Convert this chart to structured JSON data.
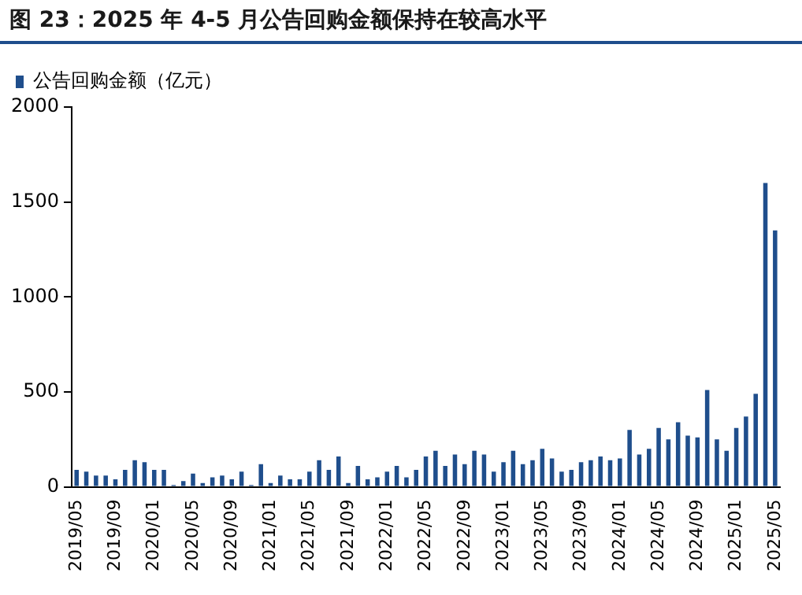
{
  "chart_data": {
    "type": "bar",
    "title": "图 23：2025 年 4-5 月公告回购金额保持在较高水平",
    "categories": [
      "2019/05",
      null,
      null,
      null,
      "2019/09",
      null,
      null,
      null,
      "2020/01",
      null,
      null,
      null,
      "2020/05",
      null,
      null,
      null,
      "2020/09",
      null,
      null,
      null,
      "2021/01",
      null,
      null,
      null,
      "2021/05",
      null,
      null,
      null,
      "2021/09",
      null,
      null,
      null,
      "2022/01",
      null,
      null,
      null,
      "2022/05",
      null,
      null,
      null,
      "2022/09",
      null,
      null,
      null,
      "2023/01",
      null,
      null,
      null,
      "2023/05",
      null,
      null,
      null,
      "2023/09",
      null,
      null,
      null,
      "2024/01",
      null,
      null,
      null,
      "2024/05",
      null,
      null,
      null,
      "2024/09",
      null,
      null,
      null,
      "2025/01",
      null,
      null,
      null,
      "2025/05"
    ],
    "series": [
      {
        "name": "公告回购金额（亿元）",
        "color": "#1f4e8c",
        "values": [
          90,
          80,
          60,
          60,
          40,
          90,
          140,
          130,
          90,
          90,
          10,
          30,
          70,
          20,
          50,
          60,
          40,
          80,
          10,
          120,
          20,
          60,
          40,
          40,
          80,
          140,
          90,
          160,
          20,
          110,
          40,
          50,
          80,
          110,
          50,
          90,
          160,
          190,
          110,
          170,
          120,
          190,
          170,
          80,
          130,
          190,
          120,
          140,
          200,
          150,
          80,
          90,
          130,
          140,
          160,
          140,
          150,
          300,
          170,
          200,
          310,
          250,
          340,
          270,
          260,
          510,
          250,
          190,
          310,
          370,
          490,
          1600,
          1350
        ]
      }
    ],
    "ylim": [
      0,
      2000
    ],
    "yticks": [
      0,
      500,
      1000,
      1500,
      2000
    ],
    "grid": false,
    "legend": "top left"
  }
}
